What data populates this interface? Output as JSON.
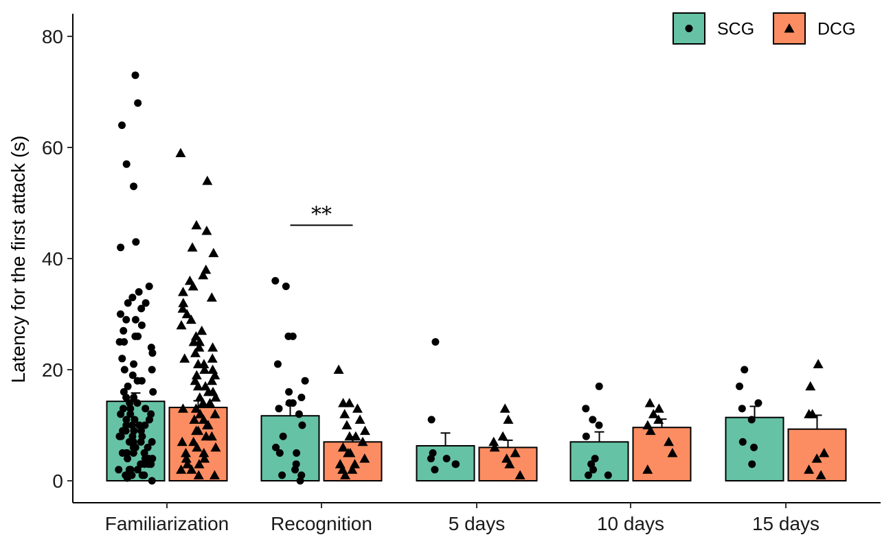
{
  "chart_data": {
    "type": "bar",
    "title": "",
    "xlabel": "",
    "ylabel": "Latency for the first attack (s)",
    "ylim": [
      0,
      83
    ],
    "yticks": [
      0,
      20,
      40,
      60,
      80
    ],
    "categories": [
      "Familiarization",
      "Recognition",
      "5 days",
      "10 days",
      "15 days"
    ],
    "legend": {
      "position": "top-right"
    },
    "series": [
      {
        "name": "SCG",
        "color": "#66c2a5",
        "marker": "circle",
        "values": [
          14.3,
          11.7,
          6.3,
          7.0,
          11.4
        ],
        "sem": [
          1.5,
          2.0,
          2.3,
          1.8,
          2.0
        ],
        "points": [
          [
            73,
            68,
            64,
            57,
            53,
            43,
            42,
            35,
            34,
            33,
            32,
            32,
            31,
            30,
            29,
            29,
            28,
            27,
            26,
            26,
            25,
            25,
            24,
            23,
            22,
            21,
            20,
            20,
            19,
            18,
            18,
            17,
            16,
            16,
            15,
            15,
            14,
            14,
            13,
            13,
            13,
            12,
            12,
            12,
            11,
            11,
            11,
            10,
            10,
            10,
            10,
            9,
            9,
            9,
            9,
            8,
            8,
            8,
            8,
            7,
            7,
            7,
            7,
            6,
            6,
            6,
            6,
            5,
            5,
            5,
            5,
            5,
            4,
            4,
            4,
            4,
            3,
            3,
            3,
            3,
            2,
            2,
            2,
            2,
            1,
            1,
            1,
            1,
            0.5,
            0
          ],
          [
            36,
            35,
            26,
            26,
            21,
            18,
            16,
            15,
            14,
            14,
            13,
            12,
            10,
            8,
            6,
            5,
            5,
            3,
            2,
            1,
            1,
            0
          ],
          [
            25,
            11,
            5,
            4,
            4,
            3,
            3,
            2
          ],
          [
            17,
            13,
            11,
            10,
            8,
            4,
            3,
            2,
            1,
            1
          ],
          [
            20,
            17,
            14,
            13,
            11,
            7,
            6,
            3
          ]
        ]
      },
      {
        "name": "DCG",
        "color": "#fc8d62",
        "marker": "triangle",
        "values": [
          13.2,
          7.0,
          6.0,
          9.6,
          9.3
        ],
        "sem": [
          1.2,
          0.9,
          1.3,
          1.5,
          2.5
        ],
        "points": [
          [
            59,
            54,
            46,
            45,
            42,
            41,
            38,
            37,
            36,
            35,
            34,
            33,
            32,
            31,
            30,
            29,
            28,
            27,
            26,
            25,
            25,
            24,
            24,
            23,
            22,
            22,
            21,
            21,
            20,
            20,
            19,
            19,
            18,
            18,
            17,
            17,
            16,
            16,
            15,
            15,
            14,
            14,
            13,
            13,
            12,
            12,
            11,
            11,
            10,
            10,
            9,
            9,
            8,
            8,
            7,
            7,
            6,
            6,
            5,
            5,
            4,
            4,
            3,
            3,
            2,
            2,
            1,
            1
          ],
          [
            20,
            14,
            14,
            13,
            12,
            11,
            10,
            9,
            8,
            8,
            7,
            6,
            5,
            5,
            4,
            3,
            3,
            2,
            2,
            1
          ],
          [
            13,
            11,
            8,
            7,
            6,
            5,
            4,
            3,
            1
          ],
          [
            14,
            13,
            12,
            11,
            10,
            9,
            7,
            5,
            2
          ],
          [
            21,
            17,
            12,
            12,
            5,
            4,
            2,
            1
          ]
        ]
      }
    ],
    "annotations": [
      {
        "text": "**",
        "category": "Recognition",
        "y": 46
      }
    ]
  }
}
